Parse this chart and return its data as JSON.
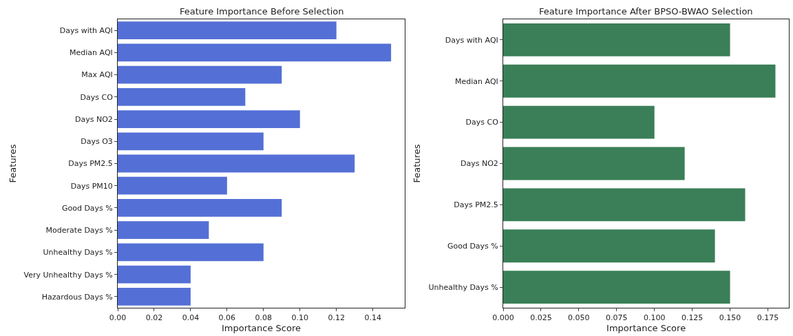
{
  "chart_data": [
    {
      "type": "bar",
      "orientation": "horizontal",
      "title": "Feature Importance Before Selection",
      "xlabel": "Importance Score",
      "ylabel": "Features",
      "categories": [
        "Days with AQI",
        "Median AQI",
        "Max AQI",
        "Days CO",
        "Days NO2",
        "Days O3",
        "Days PM2.5",
        "Days PM10",
        "Good Days %",
        "Moderate Days %",
        "Unhealthy Days %",
        "Very Unhealthy Days %",
        "Hazardous Days %"
      ],
      "values": [
        0.12,
        0.15,
        0.09,
        0.07,
        0.1,
        0.08,
        0.13,
        0.06,
        0.09,
        0.05,
        0.08,
        0.04,
        0.04
      ],
      "color": "#5470d6",
      "xlim": [
        0,
        0.1575
      ],
      "xticks": [
        {
          "value": 0,
          "label": "0.00"
        },
        {
          "value": 0.02,
          "label": "0.02"
        },
        {
          "value": 0.04,
          "label": "0.04"
        },
        {
          "value": 0.06,
          "label": "0.06"
        },
        {
          "value": 0.08,
          "label": "0.08"
        },
        {
          "value": 0.1,
          "label": "0.10"
        },
        {
          "value": 0.12,
          "label": "0.12"
        },
        {
          "value": 0.14,
          "label": "0.14"
        }
      ],
      "grid": false
    },
    {
      "type": "bar",
      "orientation": "horizontal",
      "title": "Feature Importance After BPSO-BWAO Selection",
      "xlabel": "Importance Score",
      "ylabel": "Features",
      "categories": [
        "Days with AQI",
        "Median AQI",
        "Days CO",
        "Days NO2",
        "Days PM2.5",
        "Good Days %",
        "Unhealthy Days %"
      ],
      "values": [
        0.15,
        0.18,
        0.1,
        0.12,
        0.16,
        0.14,
        0.15
      ],
      "color": "#3a7f57",
      "xlim": [
        0,
        0.189
      ],
      "xticks": [
        {
          "value": 0,
          "label": "0.000"
        },
        {
          "value": 0.025,
          "label": "0.025"
        },
        {
          "value": 0.05,
          "label": "0.050"
        },
        {
          "value": 0.075,
          "label": "0.075"
        },
        {
          "value": 0.1,
          "label": "0.100"
        },
        {
          "value": 0.125,
          "label": "0.125"
        },
        {
          "value": 0.15,
          "label": "0.150"
        },
        {
          "value": 0.175,
          "label": "0.175"
        }
      ],
      "grid": false
    }
  ]
}
